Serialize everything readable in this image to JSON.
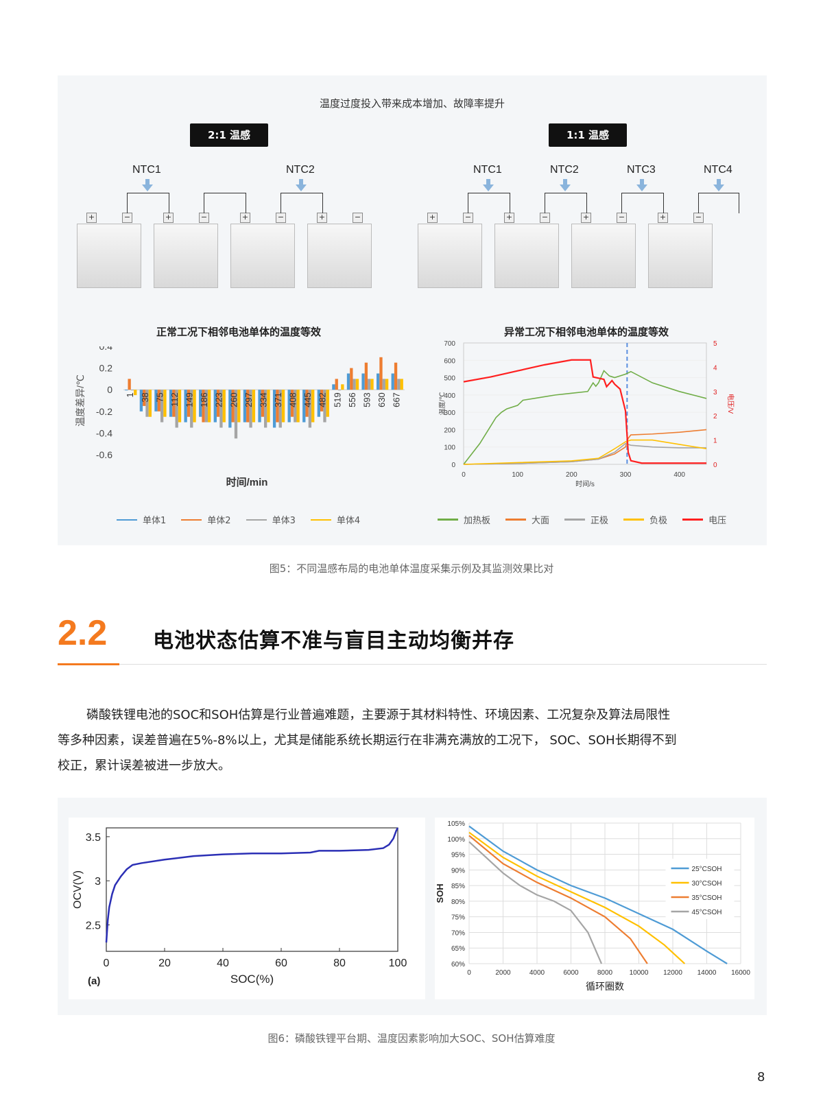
{
  "fig5": {
    "heading": "温度过度投入带来成本增加、故障率提升",
    "left_tag": "2:1 温感",
    "right_tag": "1:1 温感",
    "left_ntcs": [
      "NTC1",
      "NTC2"
    ],
    "right_ntcs": [
      "NTC1",
      "NTC2",
      "NTC3",
      "NTC4"
    ],
    "plus": "+",
    "minus": "−",
    "chart_left_title": "正常工况下相邻电池单体的温度等效",
    "chart_right_title": "异常工况下相邻电池单体的温度等效",
    "caption": "图5：不同温感布局的电池单体温度采集示例及其监测效果比对"
  },
  "section": {
    "number": "2.2",
    "title": "电池状态估算不准与盲目主动均衡并存"
  },
  "paragraph": {
    "lines": [
      "磷酸铁锂电池的SOC和SOH估算是行业普遍难题，主要源于其材料特性、环境因素、工况复杂及算法局限性",
      "等多种因素，误差普遍在5%-8%以上，尤其是储能系统长期运行在非满充满放的工况下， SOC、SOH长期得不到",
      "校正，累计误差被进一步放大。"
    ]
  },
  "fig6": {
    "caption": "图6：磷酸铁锂平台期、温度因素影响加大SOC、SOH估算难度",
    "panel_label": "(a)"
  },
  "page_number": "8",
  "chart_data": [
    {
      "type": "bar",
      "title": "正常工况下相邻电池单体的温度等效",
      "xlabel": "时间/min",
      "ylabel": "温度差异/℃",
      "ylim": [
        -0.6,
        0.4
      ],
      "yticks": [
        "0.4",
        "0.2",
        "0",
        "-0.2",
        "-0.4",
        "-0.6"
      ],
      "categories": [
        "1",
        "38",
        "75",
        "112",
        "149",
        "186",
        "223",
        "260",
        "297",
        "334",
        "371",
        "408",
        "445",
        "482",
        "519",
        "556",
        "593",
        "630",
        "667"
      ],
      "series": [
        {
          "name": "单体1",
          "color": "#4e9bd5",
          "values": [
            0.0,
            -0.2,
            -0.2,
            -0.25,
            -0.3,
            -0.25,
            -0.3,
            -0.35,
            -0.3,
            -0.3,
            -0.35,
            -0.3,
            -0.3,
            -0.25,
            0.05,
            0.15,
            0.15,
            0.15,
            0.15
          ]
        },
        {
          "name": "单体2",
          "color": "#ed7d31",
          "values": [
            0.1,
            -0.15,
            -0.2,
            -0.25,
            -0.25,
            -0.3,
            -0.25,
            -0.3,
            -0.3,
            -0.25,
            -0.3,
            -0.25,
            -0.25,
            -0.2,
            0.1,
            0.2,
            0.25,
            0.3,
            0.25
          ]
        },
        {
          "name": "单体3",
          "color": "#a5a5a5",
          "values": [
            0.0,
            -0.25,
            -0.3,
            -0.35,
            -0.35,
            -0.3,
            -0.35,
            -0.45,
            -0.35,
            -0.35,
            -0.35,
            -0.3,
            -0.35,
            -0.3,
            0.0,
            0.1,
            0.1,
            0.1,
            0.1
          ]
        },
        {
          "name": "单体4",
          "color": "#ffc000",
          "values": [
            -0.05,
            -0.25,
            -0.25,
            -0.3,
            -0.3,
            -0.3,
            -0.3,
            -0.3,
            -0.3,
            -0.3,
            -0.3,
            -0.3,
            -0.3,
            -0.25,
            0.05,
            0.1,
            0.1,
            0.1,
            0.1
          ]
        }
      ],
      "legend": "bottom"
    },
    {
      "type": "line",
      "title": "异常工况下相邻电池单体的温度等效",
      "xlabel": "时间/s",
      "ylabel": "温度/℃",
      "y2label": "电压/V",
      "xlim": [
        0,
        450
      ],
      "ylim": [
        0,
        700
      ],
      "y2lim": [
        0,
        5
      ],
      "xticks": [
        "0",
        "100",
        "200",
        "300",
        "400"
      ],
      "yticks": [
        "0",
        "100",
        "200",
        "300",
        "400",
        "500",
        "600",
        "700"
      ],
      "y2ticks": [
        "0",
        "1",
        "2",
        "3",
        "4",
        "5"
      ],
      "marker_x": 303,
      "series": [
        {
          "name": "加热板",
          "color": "#70ad47",
          "axis": "left",
          "x": [
            0,
            30,
            60,
            70,
            80,
            100,
            110,
            140,
            170,
            200,
            230,
            240,
            245,
            250,
            260,
            270,
            280,
            300,
            310,
            350,
            400,
            450
          ],
          "y": [
            0,
            120,
            270,
            300,
            320,
            340,
            370,
            385,
            400,
            410,
            420,
            470,
            450,
            470,
            540,
            510,
            500,
            520,
            535,
            470,
            420,
            380
          ]
        },
        {
          "name": "大面",
          "color": "#ed7d31",
          "axis": "left",
          "x": [
            0,
            100,
            200,
            250,
            280,
            300,
            305,
            310,
            350,
            400,
            450
          ],
          "y": [
            0,
            5,
            15,
            30,
            60,
            100,
            150,
            170,
            175,
            185,
            200
          ]
        },
        {
          "name": "正极",
          "color": "#a5a5a5",
          "axis": "left",
          "x": [
            0,
            100,
            200,
            250,
            280,
            300,
            310,
            350,
            400,
            450
          ],
          "y": [
            0,
            5,
            15,
            30,
            70,
            120,
            110,
            100,
            95,
            95
          ]
        },
        {
          "name": "负极",
          "color": "#ffc000",
          "axis": "left",
          "x": [
            0,
            100,
            200,
            250,
            280,
            300,
            310,
            350,
            400,
            450
          ],
          "y": [
            0,
            10,
            20,
            35,
            90,
            130,
            140,
            140,
            115,
            90
          ]
        },
        {
          "name": "电压",
          "color": "#ff1f1f",
          "axis": "right",
          "x": [
            0,
            50,
            100,
            150,
            200,
            220,
            235,
            240,
            260,
            265,
            275,
            280,
            290,
            300,
            305,
            310,
            330,
            450
          ],
          "y": [
            3.4,
            3.6,
            3.85,
            4.1,
            4.3,
            4.3,
            4.3,
            3.6,
            3.5,
            3.2,
            3.45,
            3.3,
            3.1,
            2.2,
            0.5,
            0.15,
            0.05,
            0.05
          ]
        }
      ],
      "legend": "bottom"
    },
    {
      "type": "line",
      "xlabel": "SOC(%)",
      "ylabel": "OCV(V)",
      "xlim": [
        0,
        100
      ],
      "ylim": [
        2.2,
        3.6
      ],
      "xticks": [
        "0",
        "20",
        "40",
        "60",
        "80",
        "100"
      ],
      "yticks": [
        "2.5",
        "3",
        "3.5"
      ],
      "series": [
        {
          "color": "#2b2fb5",
          "x": [
            0,
            0.5,
            1,
            2,
            3,
            5,
            7,
            9,
            12,
            20,
            30,
            40,
            50,
            60,
            70,
            73,
            80,
            90,
            95,
            97,
            98.5,
            99.5,
            100
          ],
          "y": [
            2.3,
            2.55,
            2.7,
            2.85,
            2.95,
            3.05,
            3.13,
            3.18,
            3.2,
            3.24,
            3.28,
            3.3,
            3.31,
            3.31,
            3.32,
            3.34,
            3.34,
            3.35,
            3.37,
            3.41,
            3.48,
            3.57,
            3.6
          ]
        }
      ]
    },
    {
      "type": "line",
      "xlabel": "循环圈数",
      "ylabel": "SOH",
      "xlim": [
        0,
        16000
      ],
      "ylim": [
        60,
        105
      ],
      "xticks": [
        "0",
        "2000",
        "4000",
        "6000",
        "8000",
        "10000",
        "12000",
        "14000",
        "16000"
      ],
      "yticks": [
        "60%",
        "65%",
        "70%",
        "75%",
        "80%",
        "85%",
        "90%",
        "95%",
        "100%",
        "105%"
      ],
      "series": [
        {
          "name": "25°CSOH",
          "color": "#4e9bd5",
          "x": [
            0,
            2000,
            4000,
            6000,
            8000,
            10000,
            12000,
            14000,
            15200
          ],
          "y": [
            104,
            96,
            90,
            85,
            81,
            76,
            71,
            64,
            60
          ]
        },
        {
          "name": "30°CSOH",
          "color": "#ffc000",
          "x": [
            0,
            2000,
            4000,
            6000,
            8000,
            10000,
            11500,
            12700
          ],
          "y": [
            102,
            94,
            88,
            83,
            78,
            72,
            66,
            60
          ]
        },
        {
          "name": "35°CSOH",
          "color": "#ed7d31",
          "x": [
            0,
            2000,
            4000,
            6000,
            8000,
            9500,
            10500
          ],
          "y": [
            101,
            92,
            86,
            81,
            75,
            68,
            60
          ]
        },
        {
          "name": "45°CSOH",
          "color": "#a5a5a5",
          "x": [
            0,
            1000,
            2000,
            3000,
            4000,
            5000,
            6000,
            7000,
            7800
          ],
          "y": [
            99,
            94,
            89,
            85,
            82,
            80,
            77,
            70,
            60
          ]
        }
      ],
      "legend": "right"
    }
  ]
}
